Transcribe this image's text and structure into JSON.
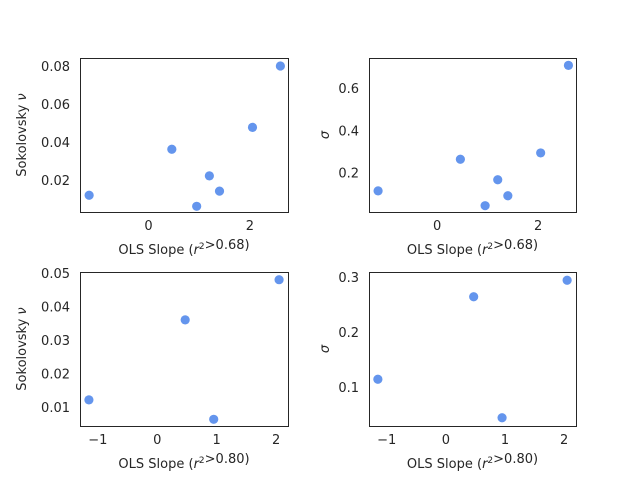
{
  "chart_data": [
    {
      "type": "scatter",
      "xlabel": "OLS Slope ($r^2$>0.68)",
      "ylabel": "Sokolovsky $\\nu$",
      "xlim": [
        -1.35,
        2.75
      ],
      "ylim": [
        0.0035,
        0.0845
      ],
      "xticks": [
        "0",
        "2"
      ],
      "yticks": [
        "0.02",
        "0.04",
        "0.06",
        "0.08"
      ],
      "point_color": "#6495ED",
      "x": [
        -1.17,
        0.46,
        0.95,
        1.2,
        1.4,
        2.05,
        2.6
      ],
      "y": [
        0.0123,
        0.0365,
        0.0065,
        0.0225,
        0.0145,
        0.048,
        0.0803
      ]
    },
    {
      "type": "scatter",
      "xlabel": "OLS Slope ($r^2$>0.68)",
      "ylabel": "$\\sigma$",
      "xlim": [
        -1.35,
        2.75
      ],
      "ylim": [
        0.015,
        0.745
      ],
      "xticks": [
        "0",
        "2"
      ],
      "yticks": [
        "0.2",
        "0.4",
        "0.6"
      ],
      "point_color": "#6495ED",
      "x": [
        -1.17,
        0.46,
        0.95,
        1.2,
        1.4,
        2.05,
        2.6
      ],
      "y": [
        0.115,
        0.265,
        0.045,
        0.168,
        0.092,
        0.295,
        0.71
      ]
    },
    {
      "type": "scatter",
      "xlabel": "OLS Slope ($r^2$>0.80)",
      "ylabel": "Sokolovsky $\\nu$",
      "xlim": [
        -1.3,
        2.2
      ],
      "ylim": [
        0.0045,
        0.0505
      ],
      "xticks": [
        "−1",
        "0",
        "1",
        "2"
      ],
      "yticks": [
        "0.01",
        "0.02",
        "0.03",
        "0.04",
        "0.05"
      ],
      "point_color": "#6495ED",
      "x": [
        -1.15,
        0.47,
        0.95,
        2.05
      ],
      "y": [
        0.0123,
        0.0362,
        0.0065,
        0.0482
      ]
    },
    {
      "type": "scatter",
      "xlabel": "OLS Slope ($r^2$>0.80)",
      "ylabel": "$\\sigma$",
      "xlim": [
        -1.3,
        2.2
      ],
      "ylim": [
        0.03,
        0.31
      ],
      "xticks": [
        "−1",
        "0",
        "1",
        "2"
      ],
      "yticks": [
        "0.1",
        "0.2",
        "0.3"
      ],
      "point_color": "#6495ED",
      "x": [
        -1.15,
        0.47,
        0.95,
        2.05
      ],
      "y": [
        0.115,
        0.265,
        0.045,
        0.295
      ]
    }
  ]
}
